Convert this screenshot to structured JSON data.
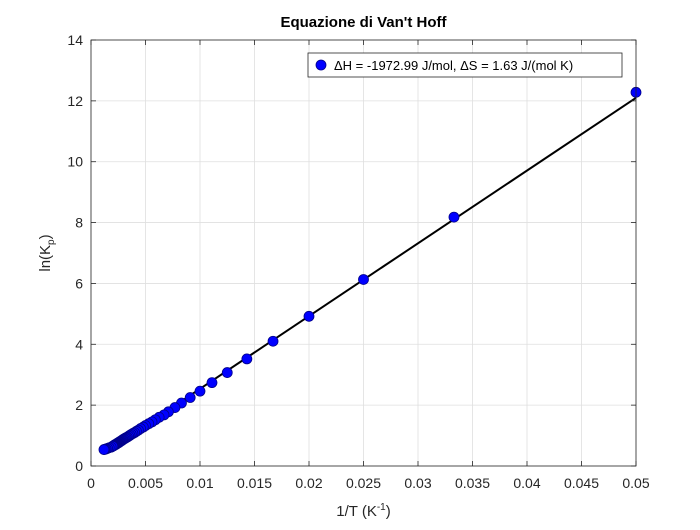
{
  "chart_data": {
    "type": "scatter",
    "title": "Equazione di Van't Hoff",
    "xlabel": {
      "main": "1/T (K",
      "sup": "-1",
      "close": ")"
    },
    "ylabel": {
      "main": "ln(K",
      "sub": "p",
      "close": ")"
    },
    "xlim": [
      0,
      0.05
    ],
    "ylim": [
      0,
      14
    ],
    "xticks": [
      0,
      0.005,
      0.01,
      0.015,
      0.02,
      0.025,
      0.03,
      0.035,
      0.04,
      0.045,
      0.05
    ],
    "xtick_labels": [
      "0",
      "0.005",
      "0.01",
      "0.015",
      "0.02",
      "0.025",
      "0.03",
      "0.035",
      "0.04",
      "0.045",
      "0.05"
    ],
    "yticks": [
      0,
      2,
      4,
      6,
      8,
      10,
      12,
      14
    ],
    "ytick_labels": [
      "0",
      "2",
      "4",
      "6",
      "8",
      "10",
      "12",
      "14"
    ],
    "grid": true,
    "legend_position": "top-right",
    "series": [
      {
        "name": "ΔH = -1972.99 J/mol, ΔS = 1.63 J/(mol K)",
        "kind": "markers",
        "color": "#0000ff",
        "edge_color": "#00008b",
        "x": [
          0.05,
          0.0333,
          0.025,
          0.02,
          0.0167,
          0.0143,
          0.0125,
          0.0111,
          0.01,
          0.0091,
          0.0083,
          0.0077,
          0.0071,
          0.0067,
          0.00625,
          0.0059,
          0.0056,
          0.0053,
          0.005,
          0.0048,
          0.00455,
          0.00435,
          0.00417,
          0.004,
          0.00385,
          0.0037,
          0.00357,
          0.00345,
          0.00333,
          0.00323,
          0.00313,
          0.00303,
          0.00294,
          0.00286,
          0.00278,
          0.0027,
          0.00263,
          0.00256,
          0.0025,
          0.00244,
          0.00238,
          0.00233,
          0.00227,
          0.00222,
          0.00217,
          0.00213,
          0.00208,
          0.00204,
          0.002,
          0.00185,
          0.00167,
          0.00152,
          0.00139,
          0.00128,
          0.00119
        ],
        "y": [
          12.28,
          8.18,
          6.13,
          4.92,
          4.1,
          3.52,
          3.07,
          2.74,
          2.46,
          2.25,
          2.07,
          1.92,
          1.78,
          1.68,
          1.6,
          1.52,
          1.45,
          1.39,
          1.33,
          1.28,
          1.23,
          1.18,
          1.14,
          1.1,
          1.07,
          1.04,
          1.01,
          0.98,
          0.95,
          0.93,
          0.91,
          0.89,
          0.87,
          0.85,
          0.83,
          0.81,
          0.79,
          0.78,
          0.76,
          0.75,
          0.74,
          0.72,
          0.71,
          0.7,
          0.69,
          0.68,
          0.67,
          0.66,
          0.65,
          0.62,
          0.6,
          0.58,
          0.56,
          0.55,
          0.54
        ]
      },
      {
        "name": "",
        "kind": "line",
        "color": "#000000",
        "x": [
          0.00119,
          0.05
        ],
        "y": [
          0.43,
          12.1
        ]
      }
    ]
  }
}
